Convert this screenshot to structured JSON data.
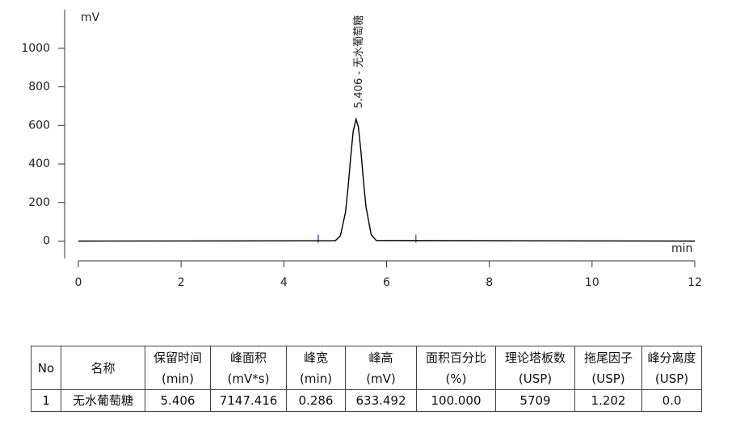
{
  "chart_data": {
    "type": "line",
    "y_label": "mV",
    "x_label": "min",
    "annotation": "5.406 - 无水葡萄糖",
    "annotation_x": 5.406,
    "x": [
      0,
      5.0,
      5.1,
      5.2,
      5.25,
      5.3,
      5.35,
      5.406,
      5.45,
      5.5,
      5.55,
      5.6,
      5.7,
      5.8,
      12
    ],
    "series": [
      {
        "color": "#000000",
        "values": [
          0,
          2,
          26,
          149,
          276,
          431,
          569,
          633,
          593,
          468,
          312,
          176,
          33,
          3,
          0
        ]
      }
    ],
    "markers": [
      {
        "x": 4.67,
        "color": "#3c50c8"
      },
      {
        "x": 6.57,
        "color": "#c84660"
      }
    ],
    "xlim": [
      0,
      12
    ],
    "xticks": [
      0,
      2,
      4,
      6,
      8,
      10,
      12
    ],
    "ylim": [
      -90,
      1200
    ],
    "yticks": [
      0,
      200,
      400,
      600,
      800,
      1000
    ]
  },
  "table": {
    "header": [
      [
        "No",
        ""
      ],
      [
        "名称",
        ""
      ],
      [
        "保留时间",
        "(min)"
      ],
      [
        "峰面积",
        "(mV*s)"
      ],
      [
        "峰宽",
        "(min)"
      ],
      [
        "峰高",
        "(mV)"
      ],
      [
        "面积百分比",
        "(%)"
      ],
      [
        "理论塔板数",
        "(USP)"
      ],
      [
        "拖尾因子",
        "(USP)"
      ],
      [
        "峰分离度",
        "(USP)"
      ]
    ],
    "rows": [
      [
        "1",
        "无水葡萄糖",
        "5.406",
        "7147.416",
        "0.286",
        "633.492",
        "100.000",
        "5709",
        "1.202",
        "0.0"
      ]
    ]
  }
}
